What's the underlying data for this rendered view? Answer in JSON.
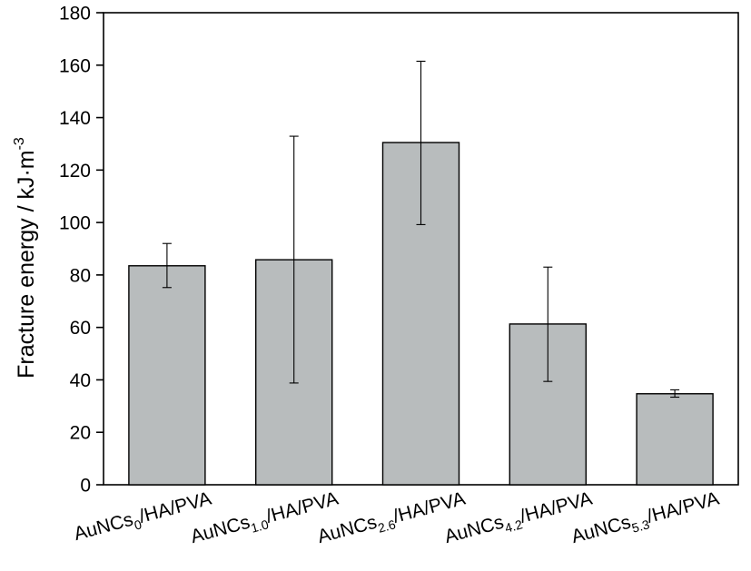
{
  "chart_data": {
    "type": "bar",
    "categories": [
      {
        "base": "AuNCs",
        "sub": "0",
        "suffix": "/HA/PVA"
      },
      {
        "base": "AuNCs",
        "sub": "1.0",
        "suffix": "/HA/PVA"
      },
      {
        "base": "AuNCs",
        "sub": "2.6",
        "suffix": "/HA/PVA"
      },
      {
        "base": "AuNCs",
        "sub": "4.2",
        "suffix": "/HA/PVA"
      },
      {
        "base": "AuNCs",
        "sub": "5.3",
        "suffix": "/HA/PVA"
      }
    ],
    "series": [
      {
        "values": [
          83.5,
          85.8,
          130.5,
          61.3,
          34.7
        ],
        "error_low": [
          75.2,
          38.8,
          99.2,
          39.4,
          33.4
        ],
        "error_high": [
          92.0,
          132.9,
          161.5,
          83.0,
          36.2
        ]
      }
    ],
    "ylabel": {
      "text": "Fracture energy / kJ·m",
      "superscript": "-3"
    },
    "xlabel": "",
    "ylim": [
      0,
      180
    ],
    "yticks": [
      "0",
      "20",
      "40",
      "60",
      "80",
      "100",
      "120",
      "140",
      "160",
      "180"
    ],
    "grid": false,
    "legend": "none",
    "colors": {
      "bar_fill": "#b8bcbd",
      "bar_stroke": "#000000",
      "axis": "#000000"
    }
  }
}
